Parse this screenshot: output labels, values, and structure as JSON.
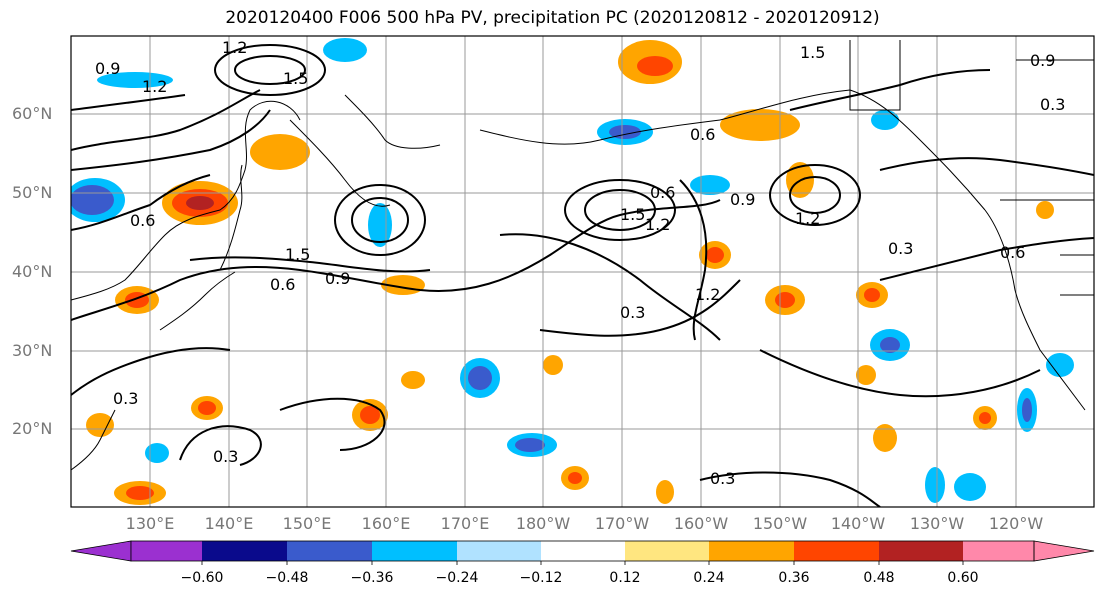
{
  "title": "2020120400 F006 500 hPa PV, precipitation PC (2020120812 - 2020120912)",
  "lat_labels": [
    "60°N",
    "50°N",
    "40°N",
    "30°N",
    "20°N"
  ],
  "lon_labels": [
    "130°E",
    "140°E",
    "150°E",
    "160°E",
    "170°E",
    "180°W",
    "170°W",
    "160°W",
    "150°W",
    "140°W",
    "130°W",
    "120°W"
  ],
  "colorbar": {
    "ticks": [
      "−0.60",
      "−0.48",
      "−0.36",
      "−0.24",
      "−0.12",
      "0.12",
      "0.24",
      "0.36",
      "0.48",
      "0.60"
    ],
    "colors": [
      "#9b30d0",
      "#0a0a8c",
      "#3a5bcc",
      "#00bfff",
      "#b0e2ff",
      "#ffffff",
      "#ffe680",
      "#ffa500",
      "#ff4500",
      "#b22222",
      "#ff88aa"
    ]
  },
  "contour_labels": [
    "1.2",
    "0.9",
    "1.2",
    "1.5",
    "1.5",
    "0.9",
    "0.6",
    "0.6",
    "1.5",
    "0.9",
    "0.6",
    "1.5",
    "1.2",
    "0.9",
    "1.2",
    "0.3",
    "0.6",
    "0.3",
    "1.2",
    "0.3",
    "0.3",
    "0.3",
    "0.6",
    "0.3"
  ],
  "legend_colors": {
    "land": "#000000",
    "grid": "#999999",
    "contour": "#000000"
  }
}
